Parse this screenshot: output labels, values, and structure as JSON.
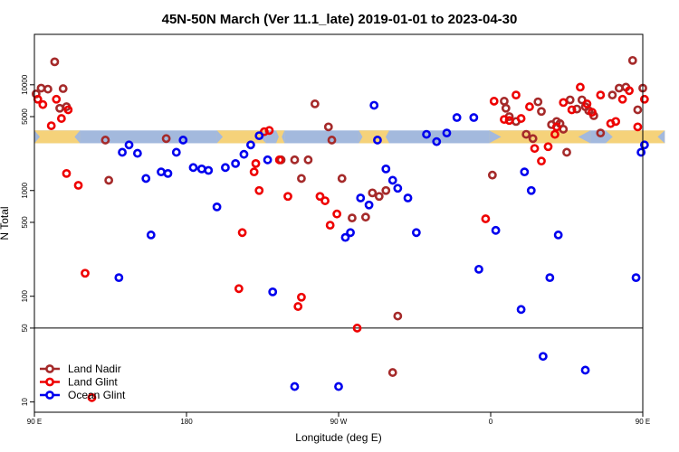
{
  "chart_data": {
    "type": "scatter",
    "title": "45N-50N March (Ver 11.1_late)   2019-01-01 to 2023-04-30",
    "xlabel": "Longitude (deg E)",
    "ylabel": "N Total",
    "x_scale": "longitude_wrapped",
    "x_range_unwrapped": [
      90,
      450
    ],
    "y_scale": "log",
    "ylim": [
      8,
      30000
    ],
    "xticks": [
      {
        "value": 90,
        "label": "90 E"
      },
      {
        "value": 180,
        "label": "180"
      },
      {
        "value": 270,
        "label": "90 W"
      },
      {
        "value": 360,
        "label": "0"
      },
      {
        "value": 450,
        "label": "90 E"
      },
      {
        "value": 540,
        "label": "180"
      }
    ],
    "yticks": [
      {
        "value": 10,
        "label": "10"
      },
      {
        "value": 50,
        "label": "50"
      },
      {
        "value": 100,
        "label": "100"
      },
      {
        "value": 500,
        "label": "500"
      },
      {
        "value": 1000,
        "label": "1000"
      },
      {
        "value": 5000,
        "label": "5000"
      },
      {
        "value": 10000,
        "label": "10000"
      }
    ],
    "reference_line": 50,
    "land_mask_strip": {
      "y_low": 2800,
      "y_high": 3700,
      "land_color": "#f5d27a",
      "ocean_color": "#a3b9dd"
    },
    "legend_position": "bottom-left",
    "series": [
      {
        "name": "Land Nadir",
        "color": "#a52a2a",
        "points": [
          [
            91,
            8200
          ],
          [
            94,
            9300
          ],
          [
            98,
            9100
          ],
          [
            102,
            16500
          ],
          [
            105,
            6000
          ],
          [
            107,
            9200
          ],
          [
            109,
            6200
          ],
          [
            132,
            3000
          ],
          [
            134,
            1250
          ],
          [
            168,
            3100
          ],
          [
            236,
            1950
          ],
          [
            244,
            1950
          ],
          [
            248,
            1300
          ],
          [
            252,
            1950
          ],
          [
            256,
            6600
          ],
          [
            264,
            4000
          ],
          [
            266,
            3000
          ],
          [
            272,
            1300
          ],
          [
            278,
            550
          ],
          [
            286,
            560
          ],
          [
            290,
            950
          ],
          [
            294,
            880
          ],
          [
            298,
            1000
          ],
          [
            302,
            19
          ],
          [
            305,
            65
          ],
          [
            361,
            1400
          ],
          [
            368,
            7000
          ],
          [
            369,
            6000
          ],
          [
            371,
            5000
          ],
          [
            375,
            4500
          ],
          [
            381,
            3400
          ],
          [
            385,
            3100
          ],
          [
            388,
            6900
          ],
          [
            390,
            5600
          ],
          [
            396,
            4200
          ],
          [
            399,
            4500
          ],
          [
            401,
            4300
          ],
          [
            403,
            3800
          ],
          [
            405,
            2300
          ],
          [
            407,
            7200
          ],
          [
            411,
            5900
          ],
          [
            414,
            7200
          ],
          [
            416,
            6200
          ],
          [
            418,
            5700
          ],
          [
            421,
            5100
          ],
          [
            425,
            3500
          ],
          [
            432,
            8000
          ],
          [
            436,
            9300
          ],
          [
            440,
            9500
          ],
          [
            444,
            17000
          ],
          [
            447,
            5800
          ],
          [
            450,
            9300
          ],
          [
            455,
            6200
          ],
          [
            460,
            2950
          ],
          [
            463,
            1250
          ]
        ]
      },
      {
        "name": "Land Glint",
        "color": "#ee0000",
        "points": [
          [
            92,
            7300
          ],
          [
            95,
            6500
          ],
          [
            100,
            4100
          ],
          [
            103,
            7300
          ],
          [
            106,
            4800
          ],
          [
            109,
            1450
          ],
          [
            110,
            5800
          ],
          [
            116,
            1120
          ],
          [
            120,
            165
          ],
          [
            124,
            11
          ],
          [
            211,
            118
          ],
          [
            213,
            400
          ],
          [
            220,
            1500
          ],
          [
            221,
            1800
          ],
          [
            223,
            1000
          ],
          [
            226,
            3600
          ],
          [
            229,
            3700
          ],
          [
            235,
            1950
          ],
          [
            240,
            880
          ],
          [
            246,
            80
          ],
          [
            248,
            98
          ],
          [
            259,
            880
          ],
          [
            262,
            800
          ],
          [
            265,
            470
          ],
          [
            269,
            600
          ],
          [
            281,
            50
          ],
          [
            357,
            540
          ],
          [
            362,
            7000
          ],
          [
            368,
            4700
          ],
          [
            371,
            4600
          ],
          [
            375,
            8000
          ],
          [
            378,
            4800
          ],
          [
            383,
            6200
          ],
          [
            386,
            2500
          ],
          [
            390,
            1900
          ],
          [
            394,
            2600
          ],
          [
            398,
            3400
          ],
          [
            399,
            4000
          ],
          [
            403,
            6800
          ],
          [
            408,
            5800
          ],
          [
            413,
            9500
          ],
          [
            417,
            6600
          ],
          [
            420,
            5500
          ],
          [
            425,
            8000
          ],
          [
            431,
            4300
          ],
          [
            434,
            4500
          ],
          [
            438,
            7300
          ],
          [
            442,
            8800
          ],
          [
            447,
            4000
          ],
          [
            451,
            7300
          ],
          [
            458,
            4700
          ],
          [
            462,
            5800
          ],
          [
            466,
            5700
          ],
          [
            472,
            1450
          ],
          [
            477,
            1120
          ],
          [
            483,
            165
          ],
          [
            484,
            11
          ]
        ]
      },
      {
        "name": "Ocean Glint",
        "color": "#0000ee",
        "points": [
          [
            140,
            150
          ],
          [
            142,
            2300
          ],
          [
            146,
            2700
          ],
          [
            151,
            2250
          ],
          [
            156,
            1300
          ],
          [
            159,
            380
          ],
          [
            165,
            1500
          ],
          [
            169,
            1450
          ],
          [
            174,
            2300
          ],
          [
            178,
            3000
          ],
          [
            184,
            1650
          ],
          [
            189,
            1600
          ],
          [
            193,
            1550
          ],
          [
            198,
            700
          ],
          [
            203,
            1650
          ],
          [
            209,
            1800
          ],
          [
            214,
            2200
          ],
          [
            218,
            2700
          ],
          [
            223,
            3300
          ],
          [
            228,
            1950
          ],
          [
            231,
            110
          ],
          [
            244,
            14
          ],
          [
            270,
            14
          ],
          [
            274,
            360
          ],
          [
            277,
            400
          ],
          [
            283,
            850
          ],
          [
            288,
            730
          ],
          [
            291,
            6400
          ],
          [
            293,
            3000
          ],
          [
            298,
            1600
          ],
          [
            302,
            1250
          ],
          [
            305,
            1050
          ],
          [
            311,
            850
          ],
          [
            316,
            400
          ],
          [
            322,
            3400
          ],
          [
            328,
            2900
          ],
          [
            334,
            3500
          ],
          [
            340,
            4900
          ],
          [
            350,
            4900
          ],
          [
            353,
            180
          ],
          [
            363,
            420
          ],
          [
            378,
            75
          ],
          [
            380,
            1500
          ],
          [
            384,
            1000
          ],
          [
            391,
            27
          ],
          [
            395,
            150
          ],
          [
            400,
            380
          ],
          [
            416,
            20
          ],
          [
            446,
            150
          ],
          [
            449,
            2300
          ],
          [
            451,
            2700
          ],
          [
            456,
            2250
          ],
          [
            463,
            1300
          ],
          [
            469,
            380
          ],
          [
            474,
            1500
          ],
          [
            478,
            1450
          ],
          [
            484,
            2300
          ]
        ]
      }
    ]
  }
}
